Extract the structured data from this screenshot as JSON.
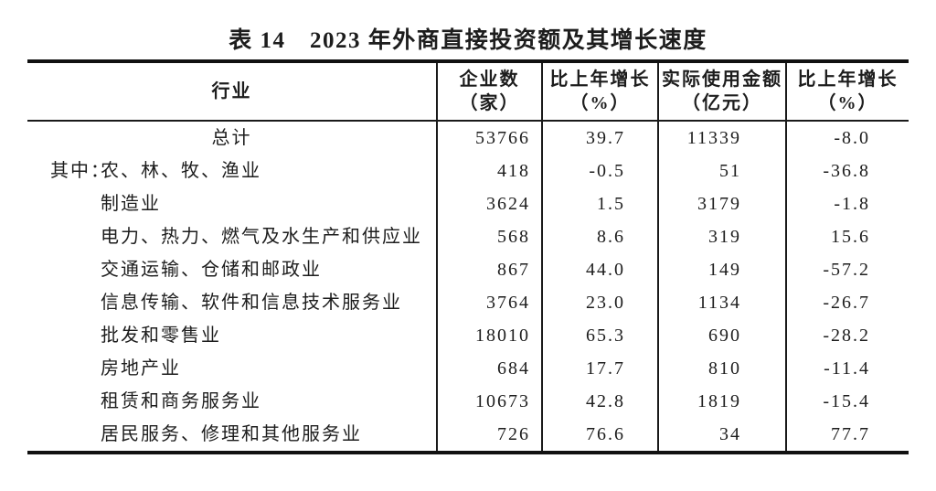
{
  "title": {
    "text": "表 14　2023 年外商直接投资额及其增长速度",
    "underline_color": "#c01414"
  },
  "colors": {
    "text": "#1d1d1d",
    "border": "#1a1a1a",
    "accent_red": "#c01414",
    "background": "#ffffff"
  },
  "table": {
    "header": {
      "industry_label": "行业",
      "columns": [
        {
          "line1": "企业数",
          "line2": "（家）"
        },
        {
          "line1": "比上年增长",
          "line2": "（%）"
        },
        {
          "line1": "实际使用金额",
          "line2": "（亿元）"
        },
        {
          "line1": "比上年增长",
          "line2": "（%）"
        }
      ]
    },
    "rows": [
      {
        "prefix": "",
        "industry": "总计",
        "align": "center",
        "enterprises": "53766",
        "enterprises_growth": "39.7",
        "amount_used": "11339",
        "amount_growth": "-8.0"
      },
      {
        "prefix": "其中：",
        "industry": "农、林、牧、渔业",
        "align": "indent",
        "enterprises": "418",
        "enterprises_growth": "-0.5",
        "amount_used": "51",
        "amount_growth": "-36.8"
      },
      {
        "prefix": "",
        "industry": "制造业",
        "align": "indent",
        "enterprises": "3624",
        "enterprises_growth": "1.5",
        "amount_used": "3179",
        "amount_growth": "-1.8"
      },
      {
        "prefix": "",
        "industry": "电力、热力、燃气及水生产和供应业",
        "align": "indent",
        "enterprises": "568",
        "enterprises_growth": "8.6",
        "amount_used": "319",
        "amount_growth": "15.6"
      },
      {
        "prefix": "",
        "industry": "交通运输、仓储和邮政业",
        "align": "indent",
        "enterprises": "867",
        "enterprises_growth": "44.0",
        "amount_used": "149",
        "amount_growth": "-57.2"
      },
      {
        "prefix": "",
        "industry": "信息传输、软件和信息技术服务业",
        "align": "indent",
        "enterprises": "3764",
        "enterprises_growth": "23.0",
        "amount_used": "1134",
        "amount_growth": "-26.7"
      },
      {
        "prefix": "",
        "industry": "批发和零售业",
        "align": "indent",
        "enterprises": "18010",
        "enterprises_growth": "65.3",
        "amount_used": "690",
        "amount_growth": "-28.2"
      },
      {
        "prefix": "",
        "industry": "房地产业",
        "align": "indent",
        "enterprises": "684",
        "enterprises_growth": "17.7",
        "amount_used": "810",
        "amount_growth": "-11.4"
      },
      {
        "prefix": "",
        "industry": "租赁和商务服务业",
        "align": "indent",
        "enterprises": "10673",
        "enterprises_growth": "42.8",
        "amount_used": "1819",
        "amount_growth": "-15.4"
      },
      {
        "prefix": "",
        "industry": "居民服务、修理和其他服务业",
        "align": "indent",
        "enterprises": "726",
        "enterprises_growth": "76.6",
        "amount_used": "34",
        "amount_growth": "77.7"
      }
    ]
  }
}
